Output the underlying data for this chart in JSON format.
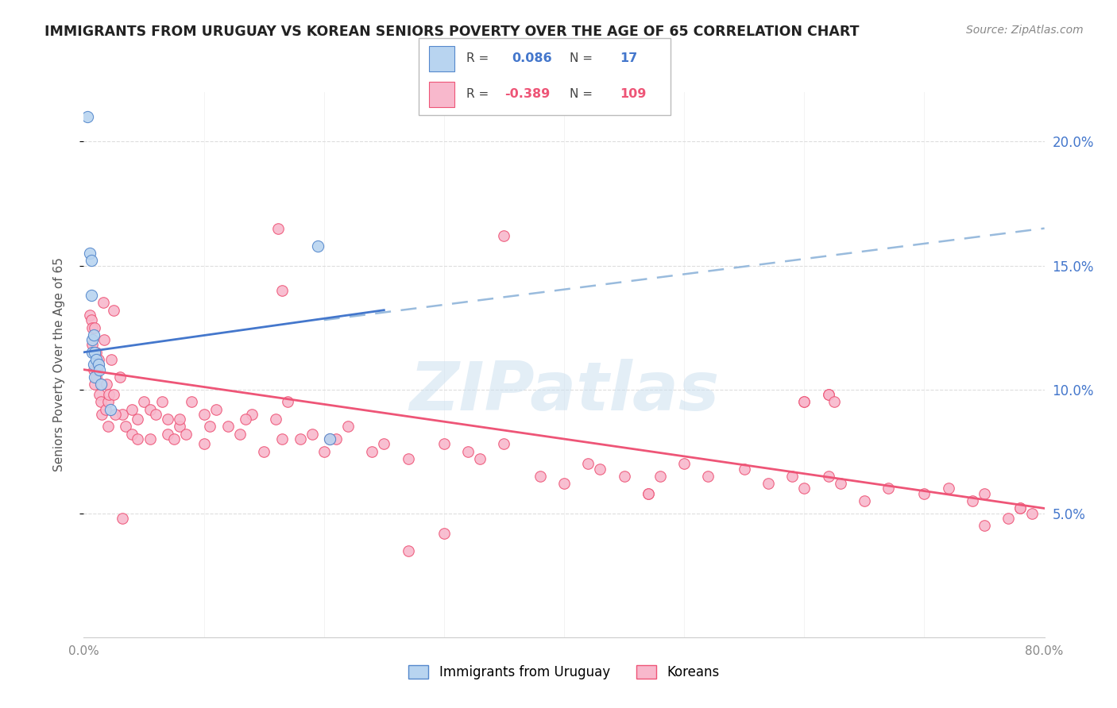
{
  "title": "IMMIGRANTS FROM URUGUAY VS KOREAN SENIORS POVERTY OVER THE AGE OF 65 CORRELATION CHART",
  "source": "Source: ZipAtlas.com",
  "ylabel": "Seniors Poverty Over the Age of 65",
  "xlim": [
    0.0,
    80.0
  ],
  "ylim": [
    0.0,
    22.0
  ],
  "ytick_values": [
    5.0,
    10.0,
    15.0,
    20.0
  ],
  "ytick_labels": [
    "5.0%",
    "10.0%",
    "15.0%",
    "20.0%"
  ],
  "blue_r": "0.086",
  "blue_n": "17",
  "pink_r": "-0.389",
  "pink_n": "109",
  "blue_face_color": "#b8d4f0",
  "blue_edge_color": "#5588cc",
  "pink_face_color": "#f8b8cc",
  "pink_edge_color": "#ee5577",
  "blue_line_color": "#4477cc",
  "pink_line_color": "#ee5577",
  "dashed_line_color": "#99bbdd",
  "grid_color": "#dddddd",
  "watermark_color": "#cce0f0",
  "watermark_text": "ZIPatlas",
  "legend_blue_label": "Immigrants from Uruguay",
  "legend_pink_label": "Koreans",
  "blue_x": [
    0.3,
    0.5,
    0.6,
    0.6,
    0.7,
    0.7,
    0.8,
    0.8,
    0.9,
    0.9,
    1.0,
    1.2,
    1.3,
    1.4,
    2.2,
    19.5,
    20.5
  ],
  "blue_y": [
    21.0,
    15.5,
    15.2,
    13.8,
    12.0,
    11.5,
    12.2,
    11.0,
    11.5,
    10.5,
    11.2,
    11.0,
    10.8,
    10.2,
    9.2,
    15.8,
    8.0
  ],
  "pink_x": [
    0.5,
    0.6,
    0.7,
    0.7,
    0.8,
    0.9,
    0.9,
    1.0,
    1.0,
    1.1,
    1.2,
    1.3,
    1.4,
    1.5,
    1.5,
    1.6,
    1.7,
    1.8,
    1.9,
    2.0,
    2.0,
    2.1,
    2.3,
    2.5,
    2.5,
    3.0,
    3.2,
    3.5,
    4.0,
    4.0,
    4.5,
    4.5,
    5.0,
    5.5,
    5.5,
    6.0,
    6.5,
    7.0,
    7.0,
    7.5,
    8.0,
    8.0,
    8.5,
    9.0,
    10.0,
    10.5,
    11.0,
    12.0,
    13.0,
    14.0,
    15.0,
    16.5,
    17.0,
    18.0,
    19.0,
    20.0,
    21.0,
    22.0,
    24.0,
    25.0,
    27.0,
    30.0,
    32.0,
    33.0,
    35.0,
    35.0,
    38.0,
    40.0,
    42.0,
    43.0,
    45.0,
    47.0,
    48.0,
    50.0,
    52.0,
    55.0,
    57.0,
    59.0,
    60.0,
    62.0,
    63.0,
    65.0,
    67.0,
    70.0,
    72.0,
    74.0,
    75.0,
    77.0,
    78.0,
    79.0,
    16.5,
    47.0,
    60.0,
    62.0,
    30.0,
    10.0,
    27.0,
    3.2,
    20.5,
    16.2,
    2.6,
    13.5,
    1.2,
    16.0,
    60.0,
    62.0,
    75.0,
    78.0,
    62.5
  ],
  "pink_y": [
    13.0,
    12.8,
    12.5,
    11.8,
    10.8,
    12.5,
    10.2,
    10.5,
    11.5,
    10.8,
    11.2,
    9.8,
    9.5,
    10.2,
    9.0,
    13.5,
    12.0,
    9.2,
    10.2,
    9.5,
    8.5,
    9.8,
    11.2,
    13.2,
    9.8,
    10.5,
    9.0,
    8.5,
    9.2,
    8.2,
    8.0,
    8.8,
    9.5,
    9.2,
    8.0,
    9.0,
    9.5,
    8.2,
    8.8,
    8.0,
    8.5,
    8.8,
    8.2,
    9.5,
    9.0,
    8.5,
    9.2,
    8.5,
    8.2,
    9.0,
    7.5,
    8.0,
    9.5,
    8.0,
    8.2,
    7.5,
    8.0,
    8.5,
    7.5,
    7.8,
    7.2,
    7.8,
    7.5,
    7.2,
    7.8,
    16.2,
    6.5,
    6.2,
    7.0,
    6.8,
    6.5,
    5.8,
    6.5,
    7.0,
    6.5,
    6.8,
    6.2,
    6.5,
    6.0,
    6.5,
    6.2,
    5.5,
    6.0,
    5.8,
    6.0,
    5.5,
    5.8,
    4.8,
    5.2,
    5.0,
    14.0,
    5.8,
    9.5,
    9.8,
    4.2,
    7.8,
    3.5,
    4.8,
    8.0,
    16.5,
    9.0,
    8.8,
    11.0,
    8.8,
    9.5,
    9.8,
    4.5,
    5.2,
    9.5
  ],
  "blue_line_start_x": 0.0,
  "blue_line_end_x": 25.0,
  "blue_line_start_y": 11.5,
  "blue_line_end_y": 13.2,
  "dashed_line_start_x": 20.0,
  "dashed_line_end_x": 80.0,
  "dashed_line_start_y": 12.8,
  "dashed_line_end_y": 16.5,
  "pink_line_start_x": 0.0,
  "pink_line_end_x": 80.0,
  "pink_line_start_y": 10.8,
  "pink_line_end_y": 5.2
}
